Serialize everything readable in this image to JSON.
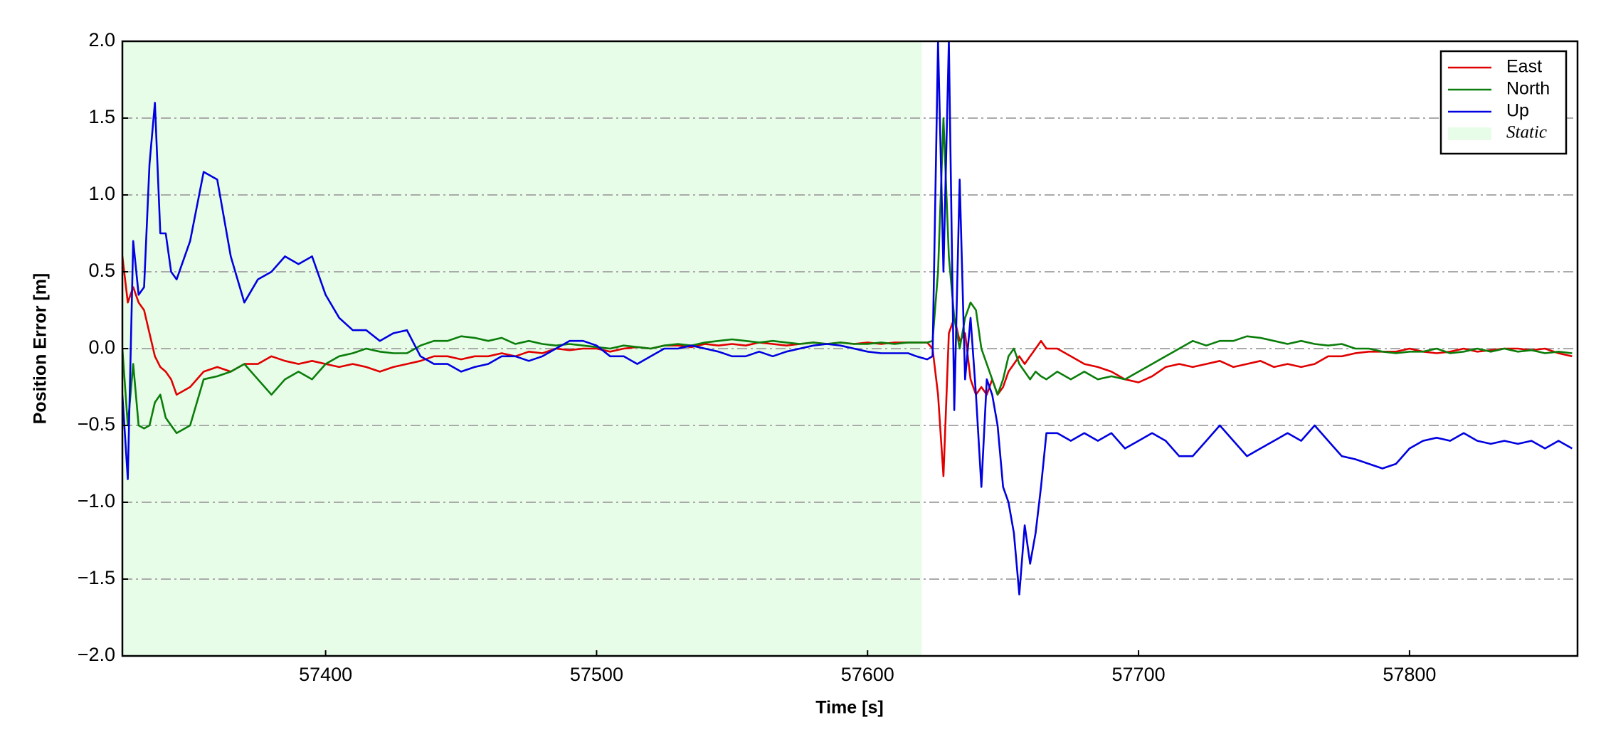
{
  "chart_data": {
    "type": "line",
    "x_label": "Time [s]",
    "y_label": "Position Error [m]",
    "x": [
      57325,
      57327,
      57329,
      57331,
      57333,
      57335,
      57337,
      57339,
      57341,
      57343,
      57345,
      57350,
      57355,
      57360,
      57365,
      57370,
      57375,
      57380,
      57385,
      57390,
      57395,
      57400,
      57405,
      57410,
      57415,
      57420,
      57425,
      57430,
      57435,
      57440,
      57445,
      57450,
      57455,
      57460,
      57465,
      57470,
      57475,
      57480,
      57485,
      57490,
      57495,
      57500,
      57505,
      57510,
      57515,
      57520,
      57525,
      57530,
      57535,
      57540,
      57545,
      57550,
      57555,
      57560,
      57565,
      57570,
      57575,
      57580,
      57585,
      57590,
      57595,
      57600,
      57605,
      57610,
      57615,
      57618,
      57620,
      57622,
      57624,
      57626,
      57628,
      57630,
      57632,
      57634,
      57636,
      57638,
      57640,
      57642,
      57644,
      57646,
      57648,
      57650,
      57652,
      57654,
      57656,
      57658,
      57660,
      57662,
      57664,
      57666,
      57670,
      57675,
      57680,
      57685,
      57690,
      57695,
      57700,
      57705,
      57710,
      57715,
      57720,
      57725,
      57730,
      57735,
      57740,
      57745,
      57750,
      57755,
      57760,
      57765,
      57770,
      57775,
      57780,
      57785,
      57790,
      57795,
      57800,
      57805,
      57810,
      57815,
      57820,
      57825,
      57830,
      57835,
      57840,
      57845,
      57850,
      57855,
      57860
    ],
    "series": [
      {
        "name": "East",
        "color": "#e00000",
        "values": [
          0.6,
          0.3,
          0.4,
          0.3,
          0.25,
          0.1,
          -0.05,
          -0.12,
          -0.15,
          -0.2,
          -0.3,
          -0.25,
          -0.15,
          -0.12,
          -0.15,
          -0.1,
          -0.1,
          -0.05,
          -0.08,
          -0.1,
          -0.08,
          -0.1,
          -0.12,
          -0.1,
          -0.12,
          -0.15,
          -0.12,
          -0.1,
          -0.08,
          -0.05,
          -0.05,
          -0.07,
          -0.05,
          -0.05,
          -0.03,
          -0.05,
          -0.02,
          -0.03,
          0,
          -0.01,
          0,
          0,
          -0.02,
          0,
          0.01,
          0,
          0.02,
          0.02,
          0.01,
          0.03,
          0.02,
          0.03,
          0.02,
          0.04,
          0.03,
          0.02,
          0.03,
          0.04,
          0.03,
          0.04,
          0.03,
          0.04,
          0.03,
          0.04,
          0.04,
          0.04,
          0.04,
          0.04,
          0.0,
          -0.3,
          -0.83,
          0.1,
          0.2,
          0.05,
          0.1,
          -0.2,
          -0.3,
          -0.25,
          -0.3,
          -0.2,
          -0.3,
          -0.25,
          -0.15,
          -0.1,
          -0.05,
          -0.1,
          -0.05,
          0.0,
          0.05,
          0.0,
          0.0,
          -0.05,
          -0.1,
          -0.12,
          -0.15,
          -0.2,
          -0.22,
          -0.18,
          -0.12,
          -0.1,
          -0.12,
          -0.1,
          -0.08,
          -0.12,
          -0.1,
          -0.08,
          -0.12,
          -0.1,
          -0.12,
          -0.1,
          -0.05,
          -0.05,
          -0.03,
          -0.02,
          -0.02,
          -0.02,
          0,
          -0.02,
          -0.03,
          -0.02,
          0,
          -0.02,
          -0.01,
          0,
          0,
          -0.01,
          0,
          -0.03,
          -0.05
        ]
      },
      {
        "name": "North",
        "color": "#0a7d0a",
        "values": [
          0.0,
          -0.5,
          -0.1,
          -0.5,
          -0.52,
          -0.5,
          -0.35,
          -0.3,
          -0.45,
          -0.5,
          -0.55,
          -0.5,
          -0.2,
          -0.18,
          -0.15,
          -0.1,
          -0.2,
          -0.3,
          -0.2,
          -0.15,
          -0.2,
          -0.1,
          -0.05,
          -0.03,
          0,
          -0.02,
          -0.03,
          -0.03,
          0.02,
          0.05,
          0.05,
          0.08,
          0.07,
          0.05,
          0.07,
          0.03,
          0.05,
          0.03,
          0.02,
          0.03,
          0.02,
          0.01,
          0,
          0.02,
          0.01,
          0,
          0.02,
          0.03,
          0.02,
          0.04,
          0.05,
          0.06,
          0.05,
          0.04,
          0.05,
          0.04,
          0.03,
          0.04,
          0.03,
          0.04,
          0.03,
          0.03,
          0.04,
          0.03,
          0.04,
          0.04,
          0.04,
          0.04,
          0.05,
          0.5,
          1.5,
          0.6,
          0.2,
          0.0,
          0.2,
          0.3,
          0.25,
          0.0,
          -0.1,
          -0.2,
          -0.3,
          -0.2,
          -0.05,
          0.0,
          -0.1,
          -0.15,
          -0.2,
          -0.15,
          -0.18,
          -0.2,
          -0.15,
          -0.2,
          -0.15,
          -0.2,
          -0.18,
          -0.2,
          -0.15,
          -0.1,
          -0.05,
          0.0,
          0.05,
          0.02,
          0.05,
          0.05,
          0.08,
          0.07,
          0.05,
          0.03,
          0.05,
          0.03,
          0.02,
          0.03,
          0.0,
          0.0,
          -0.02,
          -0.03,
          -0.02,
          -0.02,
          0,
          -0.03,
          -0.02,
          0,
          -0.02,
          0,
          -0.02,
          -0.01,
          -0.03,
          -0.02,
          -0.03
        ]
      },
      {
        "name": "Up",
        "color": "#0000e0",
        "values": [
          -0.3,
          -0.85,
          0.7,
          0.35,
          0.4,
          1.2,
          1.6,
          0.75,
          0.75,
          0.5,
          0.45,
          0.7,
          1.15,
          1.1,
          0.6,
          0.3,
          0.45,
          0.5,
          0.6,
          0.55,
          0.6,
          0.35,
          0.2,
          0.12,
          0.12,
          0.05,
          0.1,
          0.12,
          -0.05,
          -0.1,
          -0.1,
          -0.15,
          -0.12,
          -0.1,
          -0.05,
          -0.05,
          -0.08,
          -0.05,
          0,
          0.05,
          0.05,
          0.02,
          -0.05,
          -0.05,
          -0.1,
          -0.05,
          0,
          0,
          0.02,
          0,
          -0.02,
          -0.05,
          -0.05,
          -0.02,
          -0.05,
          -0.02,
          0,
          0.02,
          0.03,
          0.02,
          0,
          -0.02,
          -0.03,
          -0.03,
          -0.03,
          -0.05,
          -0.06,
          -0.07,
          -0.05,
          2.0,
          0.5,
          2.0,
          -0.4,
          1.1,
          -0.2,
          0.2,
          -0.3,
          -0.9,
          -0.2,
          -0.3,
          -0.5,
          -0.9,
          -1.0,
          -1.2,
          -1.6,
          -1.15,
          -1.4,
          -1.2,
          -0.9,
          -0.55,
          -0.55,
          -0.6,
          -0.55,
          -0.6,
          -0.55,
          -0.65,
          -0.6,
          -0.55,
          -0.6,
          -0.7,
          -0.7,
          -0.6,
          -0.5,
          -0.6,
          -0.7,
          -0.65,
          -0.6,
          -0.55,
          -0.6,
          -0.5,
          -0.6,
          -0.7,
          -0.72,
          -0.75,
          -0.78,
          -0.75,
          -0.65,
          -0.6,
          -0.58,
          -0.6,
          -0.55,
          -0.6,
          -0.62,
          -0.6,
          -0.62,
          -0.6,
          -0.65,
          -0.6,
          -0.65
        ]
      }
    ],
    "shaded_regions": [
      {
        "name": "Static",
        "color": "#e8fde8",
        "x": [
          57325,
          57620
        ]
      }
    ],
    "xlim": [
      57325,
      57862
    ],
    "xticks": [
      57400,
      57500,
      57600,
      57700,
      57800
    ],
    "ylim": [
      -2,
      2
    ],
    "yticks": [
      {
        "value": -2,
        "label": "−2.0"
      },
      {
        "value": -1.5,
        "label": "−1.5"
      },
      {
        "value": -1,
        "label": "−1.0"
      },
      {
        "value": -0.5,
        "label": "−0.5"
      },
      {
        "value": 0,
        "label": "0.0"
      },
      0.5,
      {
        "value": 1,
        "label": "1.0"
      },
      1.5,
      {
        "value": 2,
        "label": "2.0"
      }
    ],
    "grid": true,
    "legend": "upper right"
  }
}
